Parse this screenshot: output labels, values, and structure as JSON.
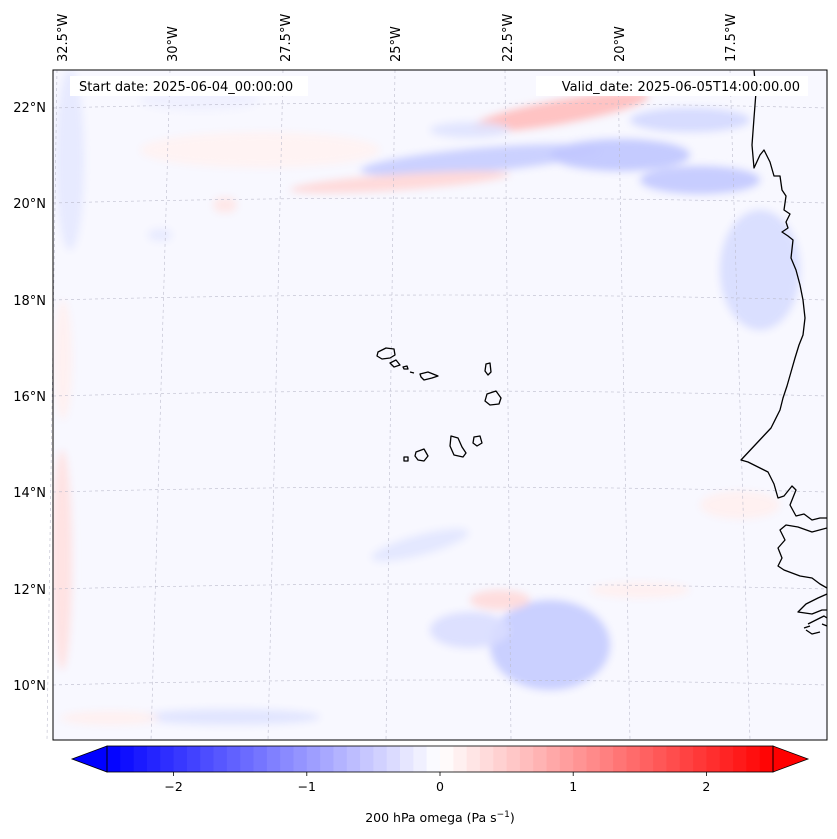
{
  "map": {
    "start_label": "Start date: 2025-06-04_00:00:00",
    "valid_label": "Valid_date: 2025-06-05T14:00:00.00",
    "lon_labels": [
      "32.5°W",
      "30°W",
      "27.5°W",
      "25°W",
      "22.5°W",
      "20°W",
      "17.5°W"
    ],
    "lat_labels": [
      "22°N",
      "20°N",
      "18°N",
      "16°N",
      "14°N",
      "12°N",
      "10°N"
    ],
    "field": "200 hPa omega"
  },
  "colorbar": {
    "ticks": [
      -2,
      -1,
      0,
      1,
      2
    ],
    "tick_labels": [
      "−2",
      "−1",
      "0",
      "1",
      "2"
    ],
    "label_prefix": "200 hPa omega (Pa s",
    "label_exp": "−1",
    "label_suffix": ")",
    "range": [
      -2.5,
      2.5
    ],
    "neg_color": "#0000ff",
    "mid_color": "#ffffff",
    "pos_color": "#ff0000"
  },
  "colors": {
    "coast": "#000000",
    "grid": "#bbbbcc",
    "background": "#f8f8ff"
  }
}
